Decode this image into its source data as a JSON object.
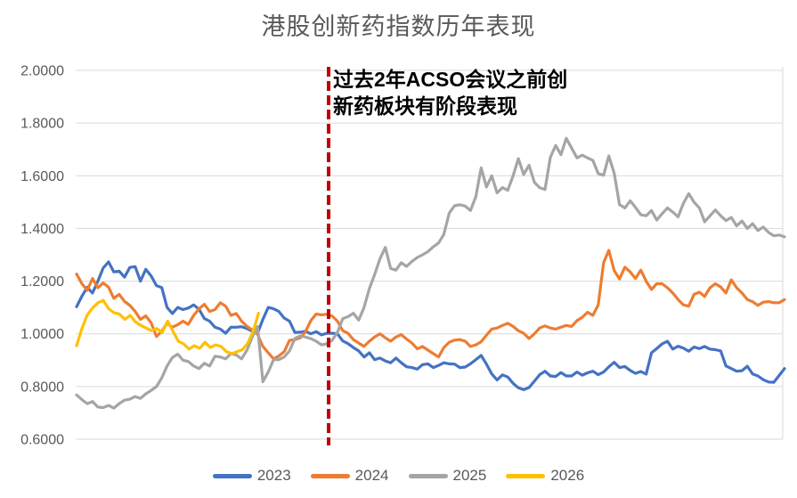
{
  "title": {
    "text": "港股创新药指数历年表现",
    "color": "#595959"
  },
  "annotation": {
    "line1": "过去2年ACSO会议之前创",
    "line2": "新药板块有阶段表现",
    "color": "#000000"
  },
  "legend": {
    "items": [
      "2023",
      "2024",
      "2025",
      "2026"
    ]
  },
  "chart_data": {
    "type": "line",
    "title": "港股创新药指数历年表现",
    "xlabel": "",
    "ylabel": "",
    "ylim": [
      0.6,
      2.0
    ],
    "grid": "horizontal",
    "grid_color": "#D9D9D9",
    "legend_position": "bottom",
    "y_ticks": [
      {
        "label": "2.0000",
        "value": 2.0
      },
      {
        "label": "1.8000",
        "value": 1.8
      },
      {
        "label": "1.6000",
        "value": 1.6
      },
      {
        "label": "1.4000",
        "value": 1.4
      },
      {
        "label": "1.2000",
        "value": 1.2
      },
      {
        "label": "1.0000",
        "value": 1.0
      },
      {
        "label": "0.8000",
        "value": 0.8
      },
      {
        "label": "0.6000",
        "value": 0.6
      }
    ],
    "axis_label_color": "#595959",
    "marker_line": {
      "style": "dashed",
      "color": "#C00000",
      "x_fraction": 0.356,
      "meaning": "ACSO会议前时点"
    },
    "series": [
      {
        "name": "2023",
        "color": "#4472C4",
        "span": 1.0,
        "values": [
          1.103,
          1.143,
          1.177,
          1.155,
          1.2,
          1.25,
          1.273,
          1.235,
          1.238,
          1.215,
          1.252,
          1.255,
          1.2,
          1.245,
          1.22,
          1.183,
          1.176,
          1.1,
          1.077,
          1.1,
          1.092,
          1.098,
          1.11,
          1.093,
          1.058,
          1.048,
          1.025,
          1.018,
          1.002,
          1.025,
          1.025,
          1.027,
          1.02,
          1.01,
          1.002,
          1.055,
          1.1,
          1.095,
          1.085,
          1.06,
          1.048,
          1.005,
          1.006,
          1.01,
          1.0,
          1.008,
          0.996,
          1.002,
          1.002,
          1.0,
          0.973,
          0.963,
          0.948,
          0.935,
          0.912,
          0.928,
          0.902,
          0.908,
          0.897,
          0.89,
          0.908,
          0.89,
          0.875,
          0.872,
          0.866,
          0.883,
          0.886,
          0.872,
          0.88,
          0.89,
          0.886,
          0.885,
          0.872,
          0.874,
          0.886,
          0.902,
          0.918,
          0.885,
          0.848,
          0.825,
          0.844,
          0.836,
          0.812,
          0.795,
          0.788,
          0.796,
          0.82,
          0.845,
          0.858,
          0.84,
          0.838,
          0.853,
          0.84,
          0.84,
          0.855,
          0.843,
          0.852,
          0.858,
          0.845,
          0.855,
          0.875,
          0.892,
          0.872,
          0.876,
          0.861,
          0.85,
          0.857,
          0.847,
          0.928,
          0.944,
          0.962,
          0.972,
          0.942,
          0.953,
          0.946,
          0.934,
          0.95,
          0.944,
          0.952,
          0.942,
          0.94,
          0.935,
          0.878,
          0.868,
          0.858,
          0.86,
          0.877,
          0.848,
          0.84,
          0.826,
          0.817,
          0.816,
          0.842,
          0.868
        ]
      },
      {
        "name": "2024",
        "color": "#ED7D31",
        "span": 1.0,
        "values": [
          1.227,
          1.19,
          1.165,
          1.21,
          1.175,
          1.193,
          1.177,
          1.135,
          1.15,
          1.123,
          1.108,
          1.085,
          1.055,
          1.068,
          1.042,
          0.99,
          1.01,
          1.04,
          1.025,
          1.035,
          1.048,
          1.036,
          1.07,
          1.095,
          1.112,
          1.085,
          1.092,
          1.118,
          1.105,
          1.07,
          1.077,
          1.048,
          1.028,
          1.015,
          0.998,
          0.952,
          0.928,
          0.905,
          0.916,
          0.932,
          0.975,
          0.978,
          0.985,
          1.008,
          1.05,
          1.075,
          1.072,
          1.074,
          1.068,
          1.048,
          1.012,
          1.002,
          0.978,
          0.965,
          0.952,
          0.972,
          0.988,
          1.0,
          0.985,
          0.972,
          0.988,
          0.997,
          0.98,
          0.965,
          0.943,
          0.952,
          0.938,
          0.925,
          0.912,
          0.948,
          0.968,
          0.976,
          0.978,
          0.972,
          0.952,
          0.958,
          0.97,
          0.995,
          1.018,
          1.022,
          1.032,
          1.04,
          1.028,
          1.012,
          1.002,
          0.982,
          1.0,
          1.022,
          1.03,
          1.022,
          1.018,
          1.025,
          1.032,
          1.028,
          1.05,
          1.063,
          1.082,
          1.07,
          1.11,
          1.27,
          1.317,
          1.24,
          1.208,
          1.253,
          1.235,
          1.21,
          1.242,
          1.2,
          1.168,
          1.19,
          1.19,
          1.175,
          1.155,
          1.13,
          1.11,
          1.105,
          1.15,
          1.158,
          1.142,
          1.175,
          1.19,
          1.178,
          1.155,
          1.205,
          1.175,
          1.155,
          1.13,
          1.122,
          1.108,
          1.12,
          1.122,
          1.118,
          1.118,
          1.13
        ]
      },
      {
        "name": "2025",
        "color": "#A5A5A5",
        "span": 1.0,
        "values": [
          0.768,
          0.75,
          0.735,
          0.743,
          0.722,
          0.72,
          0.728,
          0.718,
          0.735,
          0.748,
          0.752,
          0.762,
          0.755,
          0.772,
          0.785,
          0.8,
          0.832,
          0.878,
          0.91,
          0.923,
          0.9,
          0.895,
          0.878,
          0.868,
          0.888,
          0.878,
          0.915,
          0.912,
          0.905,
          0.925,
          0.92,
          0.905,
          0.938,
          0.988,
          1.028,
          0.818,
          0.855,
          0.902,
          0.902,
          0.912,
          0.935,
          0.982,
          0.992,
          0.988,
          0.982,
          0.972,
          0.958,
          0.962,
          0.975,
          1.005,
          1.058,
          1.065,
          1.078,
          1.052,
          1.1,
          1.172,
          1.225,
          1.285,
          1.328,
          1.248,
          1.242,
          1.27,
          1.256,
          1.275,
          1.29,
          1.3,
          1.312,
          1.33,
          1.345,
          1.377,
          1.458,
          1.486,
          1.49,
          1.485,
          1.468,
          1.52,
          1.63,
          1.557,
          1.6,
          1.535,
          1.555,
          1.545,
          1.6,
          1.665,
          1.605,
          1.64,
          1.575,
          1.555,
          1.548,
          1.67,
          1.715,
          1.68,
          1.742,
          1.705,
          1.668,
          1.678,
          1.668,
          1.658,
          1.608,
          1.602,
          1.675,
          1.61,
          1.49,
          1.478,
          1.505,
          1.48,
          1.452,
          1.448,
          1.468,
          1.432,
          1.456,
          1.478,
          1.462,
          1.444,
          1.495,
          1.532,
          1.5,
          1.478,
          1.425,
          1.448,
          1.47,
          1.448,
          1.43,
          1.442,
          1.41,
          1.428,
          1.4,
          1.418,
          1.392,
          1.405,
          1.385,
          1.372,
          1.375,
          1.368
        ]
      },
      {
        "name": "2026",
        "color": "#FFC000",
        "span": 0.257,
        "values": [
          0.955,
          1.02,
          1.072,
          1.098,
          1.118,
          1.127,
          1.095,
          1.08,
          1.075,
          1.055,
          1.07,
          1.045,
          1.032,
          1.022,
          1.012,
          1.02,
          1.005,
          1.048,
          1.01,
          0.972,
          0.962,
          0.942,
          0.955,
          0.945,
          0.968,
          0.948,
          0.958,
          0.952,
          0.932,
          0.925,
          0.932,
          0.94,
          0.965,
          1.01,
          1.078
        ]
      }
    ]
  }
}
